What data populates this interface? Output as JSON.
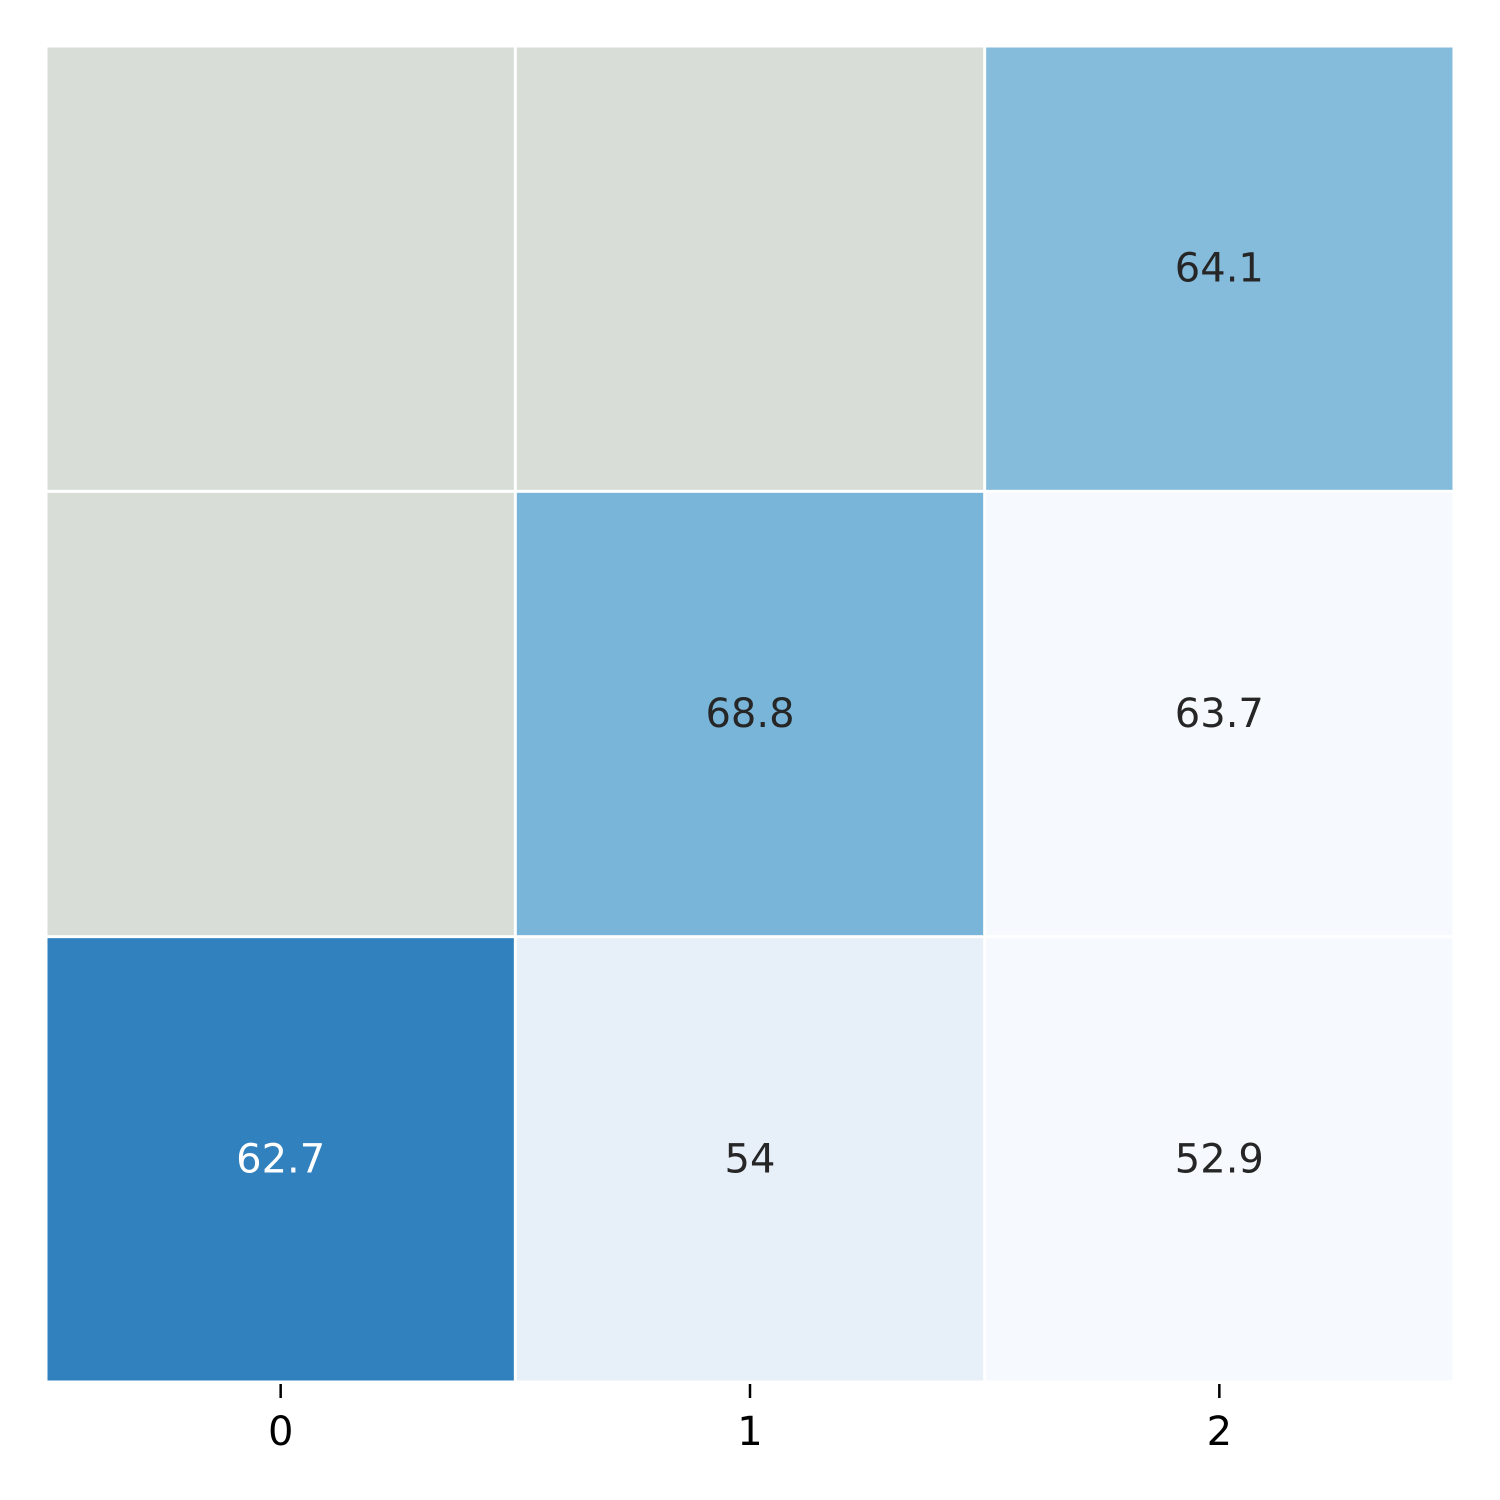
{
  "chart_data": {
    "type": "heatmap",
    "title": "",
    "xlabel": "",
    "ylabel": "",
    "x_tick_labels": [
      "0",
      "1",
      "2"
    ],
    "y_tick_labels": [],
    "rows": [
      [
        null,
        null,
        64.1
      ],
      [
        null,
        68.8,
        63.7
      ],
      [
        62.7,
        54,
        52.9
      ]
    ],
    "cell_labels": [
      [
        null,
        null,
        "64.1"
      ],
      [
        null,
        "68.8",
        "63.7"
      ],
      [
        "62.7",
        "54",
        "52.9"
      ]
    ],
    "cell_colors": [
      [
        "#d8ddd7",
        "#d8ddd7",
        "#85bbdb"
      ],
      [
        "#d8ddd7",
        "#79b5d9",
        "#f6f9fe"
      ],
      [
        "#3181be",
        "#e7eff8",
        "#f6f9fe"
      ]
    ],
    "cell_text_colors": [
      [
        null,
        null,
        "#262626"
      ],
      [
        null,
        "#262626",
        "#262626"
      ],
      [
        "#ffffff",
        "#262626",
        "#262626"
      ]
    ],
    "missing_color": "#d8ddd7",
    "colormap": "Blues",
    "grid_line_color": "#ffffff",
    "colorbar": false
  }
}
